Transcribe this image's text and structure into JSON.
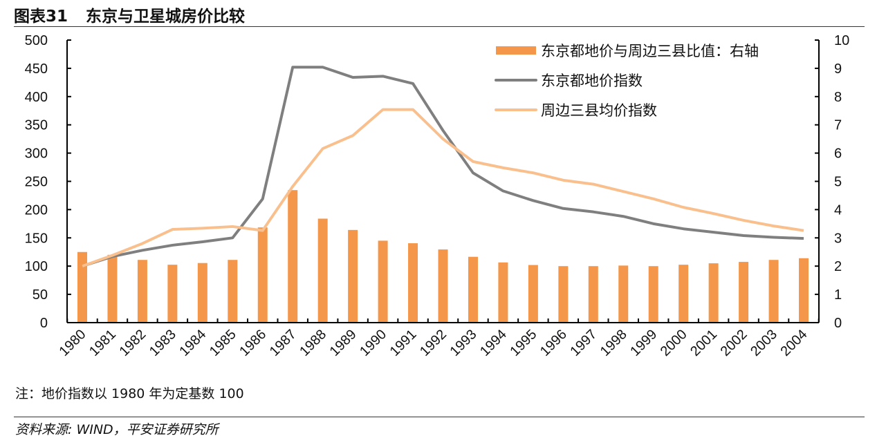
{
  "header": {
    "figure_label": "图表31",
    "title": "东京与卫星城房价比较"
  },
  "note": "注：地价指数以 1980 年为定基数 100",
  "source": "资料来源: WIND，平安证券研究所",
  "chart_data": {
    "type": "bar+line",
    "title": "东京与卫星城房价比较",
    "categories": [
      "1980",
      "1981",
      "1982",
      "1983",
      "1984",
      "1985",
      "1986",
      "1987",
      "1988",
      "1989",
      "1990",
      "1991",
      "1992",
      "1993",
      "1994",
      "1995",
      "1996",
      "1997",
      "1998",
      "1999",
      "2000",
      "2001",
      "2002",
      "2003",
      "2004"
    ],
    "left_axis": {
      "ylim": [
        0,
        500
      ],
      "ticks": [
        0,
        50,
        100,
        150,
        200,
        250,
        300,
        350,
        400,
        450,
        500
      ]
    },
    "right_axis": {
      "ylim": [
        0,
        10
      ],
      "ticks": [
        0,
        1,
        2,
        3,
        4,
        5,
        6,
        7,
        8,
        9,
        10
      ]
    },
    "grid": false,
    "legend_position": "top-right",
    "series": [
      {
        "name": "东京都地价与周边三县比值：右轴",
        "type": "bar",
        "axis": "right",
        "color": "#F4974A",
        "values": [
          2.5,
          2.4,
          2.22,
          2.05,
          2.11,
          2.22,
          3.37,
          4.69,
          3.68,
          3.28,
          2.9,
          2.81,
          2.59,
          2.33,
          2.13,
          2.04,
          2.0,
          2.0,
          2.02,
          2.0,
          2.05,
          2.1,
          2.15,
          2.22,
          2.28
        ]
      },
      {
        "name": "东京都地价指数",
        "type": "line",
        "axis": "left",
        "color": "#7F7F7F",
        "values": [
          100,
          117,
          128,
          137,
          143,
          150,
          219,
          452,
          452,
          434,
          436,
          423,
          340,
          265,
          233,
          216,
          202,
          196,
          188,
          175,
          166,
          160,
          154,
          151,
          149
        ]
      },
      {
        "name": "周边三县均价指数",
        "type": "line",
        "axis": "left",
        "color": "#F9C08E",
        "values": [
          100,
          119,
          140,
          165,
          167,
          170,
          163,
          241,
          308,
          331,
          377,
          377,
          325,
          285,
          274,
          265,
          252,
          245,
          232,
          219,
          204,
          193,
          181,
          171,
          163
        ]
      }
    ]
  }
}
